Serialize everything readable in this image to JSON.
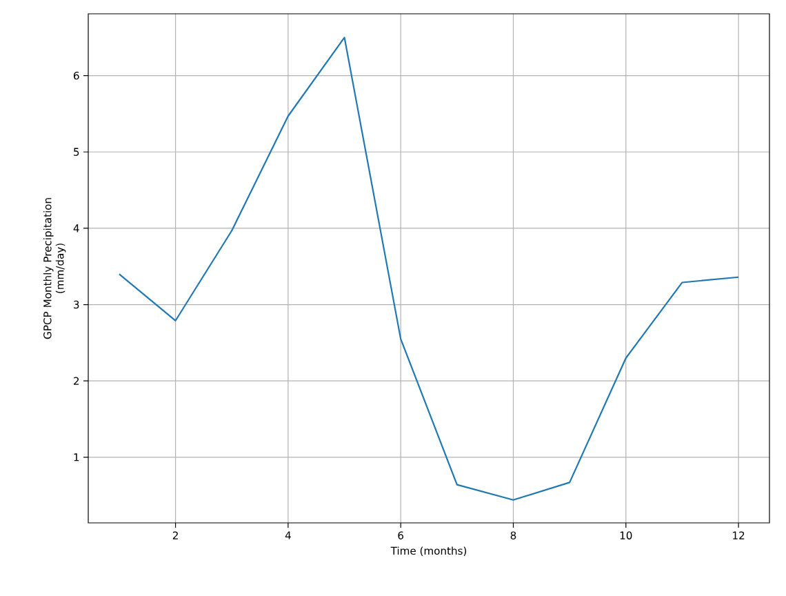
{
  "chart_data": {
    "type": "line",
    "xlabel": "Time (months)",
    "ylabel": "GPCP Monthly Precipitation\n(mm/day)",
    "x": [
      1,
      2,
      3,
      4,
      5,
      6,
      7,
      8,
      9,
      10,
      11,
      12
    ],
    "values": [
      3.4,
      2.79,
      3.97,
      5.47,
      6.5,
      2.55,
      0.64,
      0.44,
      0.67,
      2.3,
      3.29,
      3.36
    ],
    "color": "#1f77b4",
    "xlim": [
      0.45,
      12.55
    ],
    "ylim": [
      0.14,
      6.81
    ],
    "xticks": [
      2,
      4,
      6,
      8,
      10,
      12
    ],
    "yticks": [
      1,
      2,
      3,
      4,
      5,
      6
    ],
    "grid": true,
    "marker": "none",
    "line_style": "solid"
  }
}
